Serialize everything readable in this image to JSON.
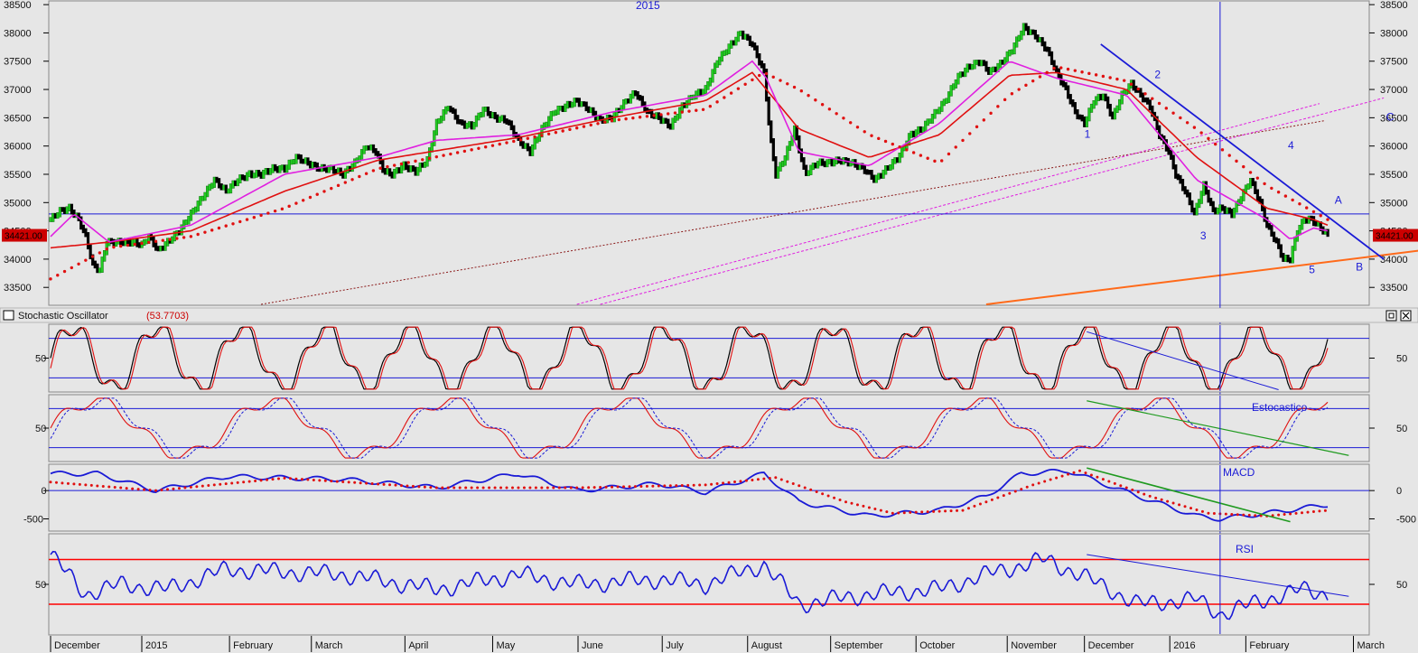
{
  "colors": {
    "background": "#e6e6e6",
    "axis_bg": "#ffffff",
    "up_candle": "#22cc22",
    "down_candle": "#000000",
    "ema_fast": "#e020e0",
    "ema_mid": "#e01010",
    "ema_slow_dotted": "#e01010",
    "trend_blue": "#1a1ad6",
    "trend_green": "#1f9a1f",
    "support_orange": "#ff6a1a",
    "channel_pink": "#e020e0",
    "channel_brown": "#8b1a1a",
    "hline_blue": "#1a1ad6",
    "rsi_bounds": "#ff0000",
    "price_tag_bg": "#cc0000",
    "price_tag_fg": "#000000"
  },
  "price_panel": {
    "year_label": "2015",
    "price_tag": "34421.00",
    "wave_labels": [
      "1",
      "2",
      "3",
      "4",
      "5",
      "A",
      "B",
      "C"
    ]
  },
  "stochastic_panel": {
    "title": "Stochastic Oscillator",
    "value": "(53.7703)",
    "tick_label": "50"
  },
  "estocastico_panel": {
    "label": "Estocastico",
    "tick_label": "50"
  },
  "macd_panel": {
    "label": "MACD"
  },
  "rsi_panel": {
    "label": "RSI",
    "tick_label": "50"
  },
  "x_axis": {
    "labels": [
      "December",
      "2015",
      "February",
      "March",
      "April",
      "May",
      "June",
      "July",
      "August",
      "September",
      "October",
      "November",
      "December",
      "2016",
      "February",
      "March"
    ]
  },
  "chart_data": [
    {
      "type": "candlestick",
      "title": "2015",
      "ylim": [
        33200,
        38550
      ],
      "y_ticks": [
        33500,
        34000,
        34500,
        35000,
        35500,
        36000,
        36500,
        37000,
        37500,
        38000,
        38500
      ],
      "x_ticks": [
        "December",
        "2015",
        "February",
        "March",
        "April",
        "May",
        "June",
        "July",
        "August",
        "September",
        "October",
        "November",
        "December",
        "2016",
        "February",
        "March"
      ],
      "last_price": 34421,
      "horizontal_line": 34800,
      "approx_close": [
        [
          0,
          34700
        ],
        [
          8,
          34850
        ],
        [
          16,
          34900
        ],
        [
          24,
          34700
        ],
        [
          30,
          34400
        ],
        [
          36,
          33900
        ],
        [
          42,
          33800
        ],
        [
          48,
          34300
        ],
        [
          56,
          34300
        ],
        [
          64,
          34300
        ],
        [
          70,
          34300
        ],
        [
          78,
          34250
        ],
        [
          84,
          34400
        ],
        [
          92,
          34150
        ],
        [
          100,
          34300
        ],
        [
          110,
          34500
        ],
        [
          120,
          34800
        ],
        [
          130,
          35100
        ],
        [
          140,
          35400
        ],
        [
          150,
          35200
        ],
        [
          160,
          35400
        ],
        [
          170,
          35500
        ],
        [
          180,
          35500
        ],
        [
          190,
          35600
        ],
        [
          200,
          35600
        ],
        [
          210,
          35800
        ],
        [
          220,
          35700
        ],
        [
          230,
          35600
        ],
        [
          240,
          35600
        ],
        [
          250,
          35500
        ],
        [
          260,
          35700
        ],
        [
          270,
          36000
        ],
        [
          278,
          35900
        ],
        [
          285,
          35550
        ],
        [
          292,
          35500
        ],
        [
          302,
          35650
        ],
        [
          312,
          35550
        ],
        [
          322,
          35750
        ],
        [
          330,
          36400
        ],
        [
          340,
          36700
        ],
        [
          350,
          36400
        ],
        [
          360,
          36350
        ],
        [
          370,
          36650
        ],
        [
          380,
          36500
        ],
        [
          390,
          36450
        ],
        [
          400,
          36100
        ],
        [
          410,
          35900
        ],
        [
          420,
          36300
        ],
        [
          430,
          36600
        ],
        [
          440,
          36700
        ],
        [
          450,
          36800
        ],
        [
          460,
          36650
        ],
        [
          470,
          36450
        ],
        [
          480,
          36500
        ],
        [
          490,
          36750
        ],
        [
          500,
          36950
        ],
        [
          510,
          36600
        ],
        [
          520,
          36500
        ],
        [
          530,
          36350
        ],
        [
          540,
          36700
        ],
        [
          550,
          36900
        ],
        [
          560,
          37000
        ],
        [
          570,
          37500
        ],
        [
          580,
          37750
        ],
        [
          590,
          38000
        ],
        [
          600,
          37800
        ],
        [
          610,
          37300
        ],
        [
          615,
          36200
        ],
        [
          620,
          35500
        ],
        [
          628,
          35800
        ],
        [
          636,
          36300
        ],
        [
          645,
          35500
        ],
        [
          655,
          35700
        ],
        [
          665,
          35700
        ],
        [
          675,
          35750
        ],
        [
          685,
          35700
        ],
        [
          695,
          35600
        ],
        [
          705,
          35400
        ],
        [
          715,
          35600
        ],
        [
          725,
          35800
        ],
        [
          735,
          36200
        ],
        [
          745,
          36300
        ],
        [
          755,
          36550
        ],
        [
          765,
          36800
        ],
        [
          775,
          37200
        ],
        [
          785,
          37400
        ],
        [
          795,
          37500
        ],
        [
          803,
          37300
        ],
        [
          812,
          37450
        ],
        [
          822,
          37700
        ],
        [
          832,
          38100
        ],
        [
          842,
          37950
        ],
        [
          852,
          37700
        ],
        [
          860,
          37300
        ],
        [
          868,
          37000
        ],
        [
          876,
          36600
        ],
        [
          884,
          36400
        ],
        [
          892,
          36800
        ],
        [
          900,
          36900
        ],
        [
          908,
          36500
        ],
        [
          916,
          36900
        ],
        [
          924,
          37100
        ],
        [
          932,
          36900
        ],
        [
          940,
          36700
        ],
        [
          948,
          36200
        ],
        [
          956,
          35900
        ],
        [
          962,
          35500
        ],
        [
          970,
          35200
        ],
        [
          978,
          34800
        ],
        [
          986,
          35300
        ],
        [
          994,
          34850
        ],
        [
          1002,
          34900
        ],
        [
          1010,
          34800
        ],
        [
          1018,
          35100
        ],
        [
          1026,
          35400
        ],
        [
          1034,
          35000
        ],
        [
          1040,
          34600
        ],
        [
          1048,
          34300
        ],
        [
          1054,
          34000
        ],
        [
          1060,
          34000
        ],
        [
          1066,
          34500
        ],
        [
          1072,
          34700
        ],
        [
          1078,
          34700
        ],
        [
          1086,
          34550
        ],
        [
          1092,
          34421
        ]
      ],
      "ema_fast_approx": [
        [
          0,
          34400
        ],
        [
          20,
          34800
        ],
        [
          50,
          34300
        ],
        [
          120,
          34600
        ],
        [
          200,
          35500
        ],
        [
          280,
          35800
        ],
        [
          330,
          36100
        ],
        [
          400,
          36200
        ],
        [
          480,
          36600
        ],
        [
          560,
          36900
        ],
        [
          600,
          37500
        ],
        [
          612,
          37200
        ],
        [
          640,
          35900
        ],
        [
          700,
          35650
        ],
        [
          760,
          36400
        ],
        [
          820,
          37500
        ],
        [
          860,
          37200
        ],
        [
          920,
          36900
        ],
        [
          980,
          35400
        ],
        [
          1040,
          34700
        ],
        [
          1060,
          34350
        ],
        [
          1080,
          34550
        ],
        [
          1092,
          34500
        ]
      ],
      "ema_mid_approx": [
        [
          0,
          34200
        ],
        [
          50,
          34300
        ],
        [
          120,
          34500
        ],
        [
          200,
          35200
        ],
        [
          280,
          35750
        ],
        [
          400,
          36150
        ],
        [
          480,
          36500
        ],
        [
          560,
          36800
        ],
        [
          600,
          37300
        ],
        [
          640,
          36300
        ],
        [
          700,
          35800
        ],
        [
          760,
          36200
        ],
        [
          820,
          37250
        ],
        [
          860,
          37300
        ],
        [
          920,
          37000
        ],
        [
          980,
          35800
        ],
        [
          1040,
          34900
        ],
        [
          1080,
          34700
        ],
        [
          1092,
          34600
        ]
      ],
      "ema_slow_approx": [
        [
          0,
          33650
        ],
        [
          50,
          34200
        ],
        [
          120,
          34400
        ],
        [
          200,
          34900
        ],
        [
          280,
          35600
        ],
        [
          400,
          36100
        ],
        [
          480,
          36450
        ],
        [
          560,
          36650
        ],
        [
          610,
          37300
        ],
        [
          640,
          37000
        ],
        [
          700,
          36200
        ],
        [
          760,
          35700
        ],
        [
          820,
          36900
        ],
        [
          860,
          37400
        ],
        [
          920,
          37150
        ],
        [
          980,
          36300
        ],
        [
          1040,
          35300
        ],
        [
          1092,
          34700
        ]
      ],
      "wave_points": [
        {
          "label": "1",
          "x": 884,
          "y": 36150
        },
        {
          "label": "2",
          "x": 944,
          "y": 37200
        },
        {
          "label": "3",
          "x": 983,
          "y": 34350
        },
        {
          "label": "4",
          "x": 1058,
          "y": 35950
        },
        {
          "label": "5",
          "x": 1076,
          "y": 33750
        },
        {
          "label": "A",
          "x": 1098,
          "y": 34980
        },
        {
          "label": "B",
          "x": 1116,
          "y": 33800
        },
        {
          "label": "C",
          "x": 1142,
          "y": 36450
        }
      ],
      "trendlines": [
        {
          "kind": "downtrend",
          "from": [
            898,
            37800
          ],
          "to": [
            1140,
            34000
          ]
        },
        {
          "kind": "support",
          "from": [
            800,
            33200
          ],
          "to": [
            1170,
            34150
          ]
        },
        {
          "kind": "channel-upper",
          "from": [
            180,
            33200
          ],
          "to": [
            1090,
            36450
          ]
        },
        {
          "kind": "channel-mid",
          "from": [
            450,
            33200
          ],
          "to": [
            1085,
            36750
          ]
        },
        {
          "kind": "channel-lower",
          "from": [
            470,
            33200
          ],
          "to": [
            1140,
            36850
          ]
        }
      ]
    },
    {
      "type": "line",
      "title": "Stochastic Oscillator",
      "value": 53.7703,
      "ylim": [
        0,
        100
      ],
      "reference_lines": [
        20,
        80
      ]
    },
    {
      "type": "line",
      "title": "Estocastico",
      "ylim": [
        0,
        100
      ],
      "reference_lines": [
        20,
        80
      ]
    },
    {
      "type": "line",
      "title": "MACD",
      "ylim": [
        -700,
        450
      ],
      "y_ticks": [
        -500,
        0
      ],
      "reference_lines": [
        0
      ]
    },
    {
      "type": "line",
      "title": "RSI",
      "ylim": [
        0,
        100
      ],
      "y_ticks": [
        50
      ],
      "reference_lines": [
        30,
        75
      ]
    }
  ]
}
